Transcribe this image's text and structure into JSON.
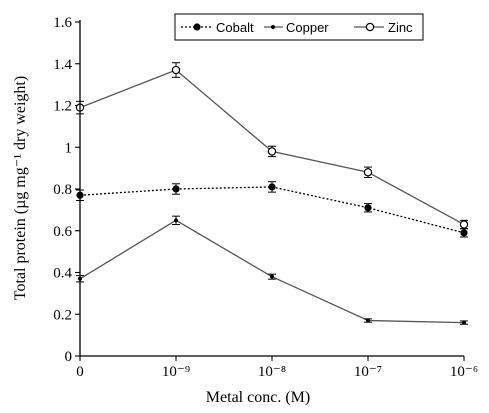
{
  "chart_data": {
    "type": "line",
    "xlabel": "Metal conc. (M)",
    "ylabel": "Total protein (µg mg⁻¹ dry weight)",
    "categories": [
      "0",
      "10⁻⁹",
      "10⁻⁸",
      "10⁻⁷",
      "10⁻⁶"
    ],
    "ylim": [
      0,
      1.6
    ],
    "yticks": [
      "0",
      "0.2",
      "0.4",
      "0.6",
      "0.8",
      "1",
      "1.2",
      "1.4",
      "1.6"
    ],
    "yticks_values": [
      0,
      0.2,
      0.4,
      0.6,
      0.8,
      1.0,
      1.2,
      1.4,
      1.6
    ],
    "grid": false,
    "legend_position": "top-right",
    "series": [
      {
        "name": "Cobalt",
        "marker": "filled-circle",
        "line": "dotted",
        "color": "#000000",
        "values": [
          0.77,
          0.8,
          0.81,
          0.71,
          0.59
        ],
        "errors": [
          0.025,
          0.025,
          0.025,
          0.02,
          0.02
        ]
      },
      {
        "name": "Copper",
        "marker": "small-dot",
        "line": "solid",
        "color": "#555555",
        "values": [
          0.37,
          0.65,
          0.38,
          0.17,
          0.16
        ],
        "errors": [
          0.015,
          0.02,
          0.012,
          0.008,
          0.008
        ]
      },
      {
        "name": "Zinc",
        "marker": "open-circle",
        "line": "solid",
        "color": "#555555",
        "values": [
          1.19,
          1.37,
          0.98,
          0.88,
          0.63
        ],
        "errors": [
          0.03,
          0.035,
          0.025,
          0.025,
          0.02
        ]
      }
    ]
  }
}
